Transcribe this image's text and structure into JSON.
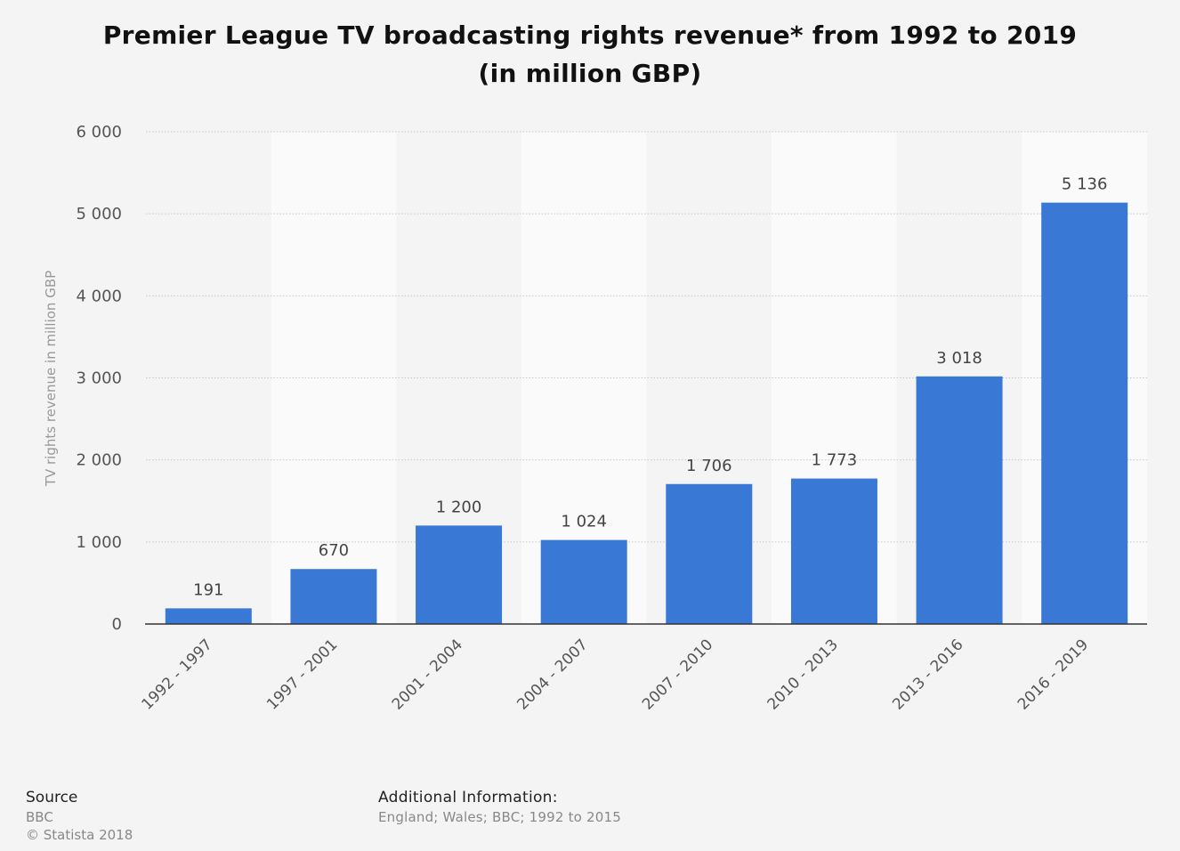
{
  "title_line1": "Premier League TV broadcasting rights revenue* from 1992 to 2019",
  "title_line2": "(in million GBP)",
  "chart_data": {
    "type": "bar",
    "title": "Premier League TV broadcasting rights revenue* from 1992 to 2019 (in million GBP)",
    "categories": [
      "1992 - 1997",
      "1997 - 2001",
      "2001 - 2004",
      "2004 - 2007",
      "2007 - 2010",
      "2010 - 2013",
      "2013 - 2016",
      "2016 - 2019"
    ],
    "values": [
      191,
      670,
      1200,
      1024,
      1706,
      1773,
      3018,
      5136
    ],
    "value_labels": [
      "191",
      "670",
      "1 200",
      "1 024",
      "1 706",
      "1 773",
      "3 018",
      "5 136"
    ],
    "xlabel": "",
    "ylabel": "TV rights revenue in million GBP",
    "ylim": [
      0,
      6000
    ],
    "yticks": [
      0,
      1000,
      2000,
      3000,
      4000,
      5000,
      6000
    ],
    "ytick_labels": [
      "0",
      "1 000",
      "2 000",
      "3 000",
      "4 000",
      "5 000",
      "6 000"
    ],
    "bar_color": "#3a78d6",
    "grid": true,
    "legend": "none"
  },
  "footer": {
    "source_heading": "Source",
    "source_name": "BBC",
    "copyright": "© Statista 2018",
    "additional_heading": "Additional Information:",
    "additional_text": "England; Wales; BBC; 1992 to 2015"
  }
}
